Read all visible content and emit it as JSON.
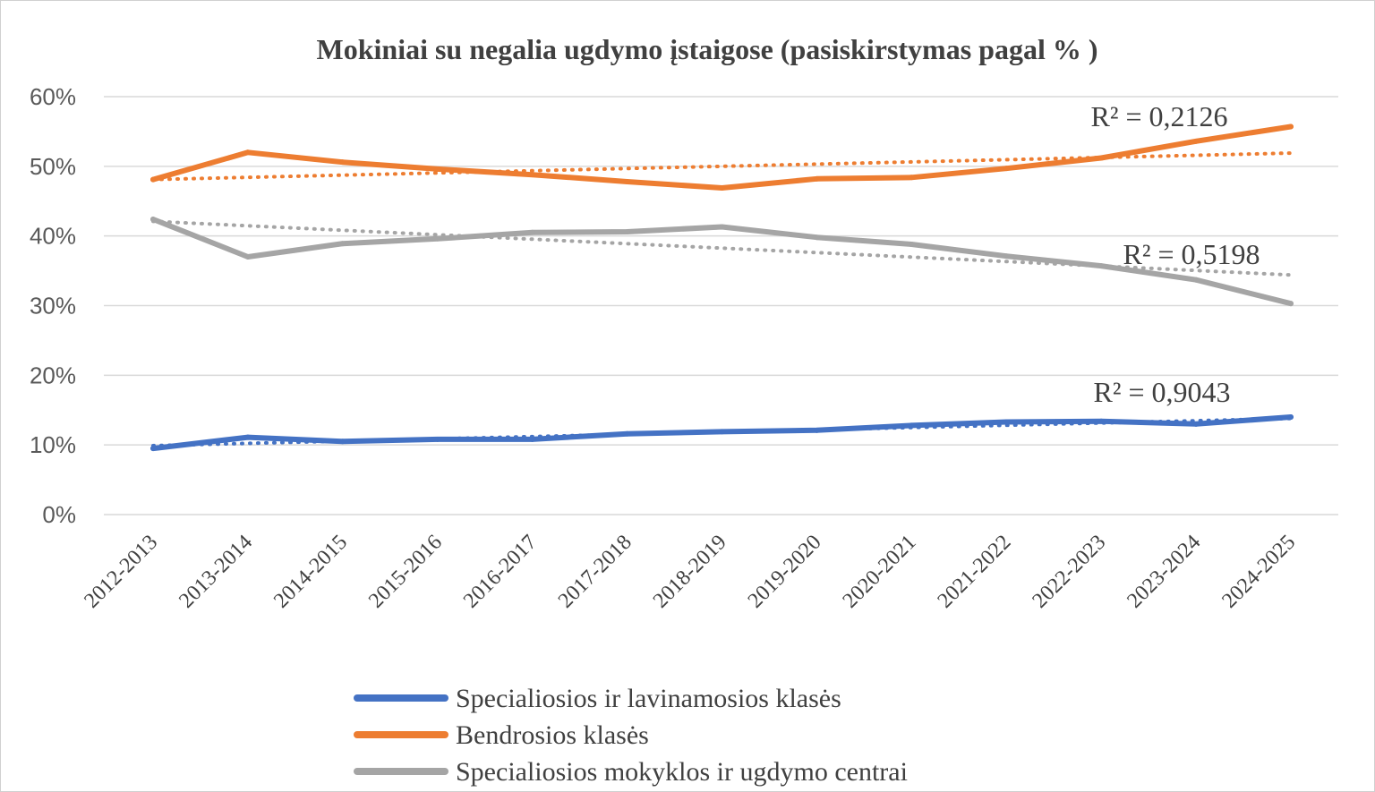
{
  "chart_data": {
    "type": "line",
    "title": "Mokiniai su negalia ugdymo įstaigose (pasiskirstymas pagal % )",
    "categories": [
      "2012-2013",
      "2013-2014",
      "2014-2015",
      "2015-2016",
      "2016-2017",
      "2017-2018",
      "2018-2019",
      "2019-2020",
      "2020-2021",
      "2021-2022",
      "2022-2023",
      "2023-2024",
      "2024-2025"
    ],
    "y_ticks": [
      "0%",
      "10%",
      "20%",
      "30%",
      "40%",
      "50%",
      "60%"
    ],
    "ylim": [
      0,
      60
    ],
    "grid": true,
    "legend_position": "bottom",
    "series": [
      {
        "name": "Specialiosios ir lavinamosios klasės",
        "color": "#4472C4",
        "values": [
          9.5,
          11.1,
          10.5,
          10.8,
          10.8,
          11.6,
          11.9,
          12.1,
          12.8,
          13.3,
          13.4,
          13.0,
          14.0
        ],
        "trendline": {
          "style": "dotted",
          "start": 9.9,
          "end": 13.8,
          "r2_label": "R² = 0,9043"
        }
      },
      {
        "name": "Bendrosios klasės",
        "color": "#ED7D31",
        "values": [
          48.1,
          52.0,
          50.6,
          49.6,
          48.8,
          47.8,
          46.9,
          48.2,
          48.4,
          49.7,
          51.2,
          53.6,
          55.7
        ],
        "trendline": {
          "style": "dotted",
          "start": 48.1,
          "end": 51.9,
          "r2_label": "R² = 0,2126"
        }
      },
      {
        "name": "Specialiosios mokyklos ir ugdymo centrai",
        "color": "#A5A5A5",
        "values": [
          42.4,
          37.0,
          38.9,
          39.6,
          40.5,
          40.6,
          41.3,
          39.8,
          38.8,
          37.1,
          35.7,
          33.7,
          30.3
        ],
        "trendline": {
          "style": "dotted",
          "start": 42.1,
          "end": 34.4,
          "r2_label": "R² = 0,5198"
        }
      }
    ]
  }
}
